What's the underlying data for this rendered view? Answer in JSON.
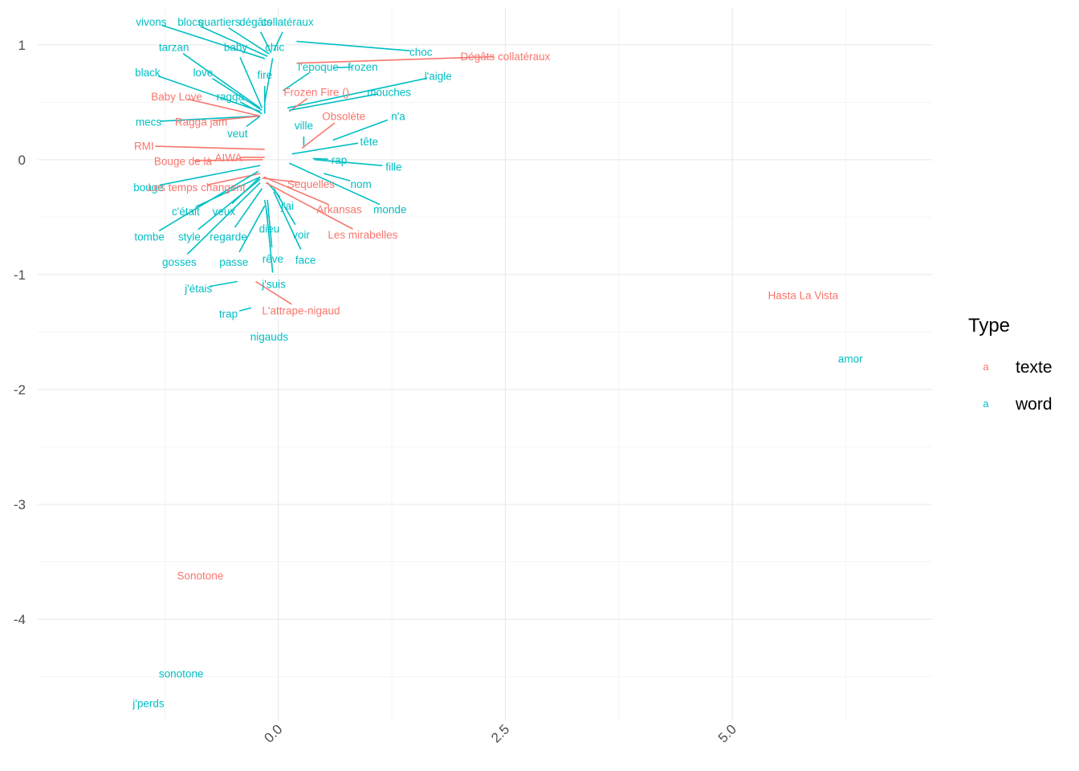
{
  "chart_data": {
    "type": "scatter",
    "title": "",
    "xlabel": "",
    "ylabel": "",
    "xlim": [
      -2.65,
      7.2
    ],
    "ylim": [
      -4.88,
      1.32
    ],
    "x_major_ticks": [
      0,
      2.5,
      5
    ],
    "x_tick_labels": [
      "0.0",
      "2.5",
      "5.0"
    ],
    "x_minor_ticks": [
      -1.25,
      1.25,
      3.75,
      6.25
    ],
    "y_major_ticks": [
      1,
      0,
      -1,
      -2,
      -3,
      -4
    ],
    "y_tick_labels": [
      "1",
      "0",
      "-1",
      "-2",
      "-3",
      "-4"
    ],
    "y_minor_ticks": [
      0.5,
      -0.5,
      -1.5,
      -2.5,
      -3.5,
      -4.5
    ],
    "grid": true,
    "legend": {
      "title": "Type",
      "placement": "right",
      "key_glyph": "a",
      "entries": [
        {
          "name": "texte",
          "color": "#F8766D"
        },
        {
          "name": "word",
          "color": "#00BFC4"
        }
      ]
    },
    "colors": {
      "texte": "#F8766D",
      "word": "#00BFC4"
    },
    "points": [
      {
        "label": "vivons",
        "type": "word",
        "x": -0.15,
        "y": 0.88,
        "lx": -1.4,
        "ly": 1.2
      },
      {
        "label": "blocs",
        "type": "word",
        "x": -0.12,
        "y": 0.9,
        "lx": -0.97,
        "ly": 1.2
      },
      {
        "label": "quartiers",
        "type": "word",
        "x": -0.1,
        "y": 0.92,
        "lx": -0.65,
        "ly": 1.2
      },
      {
        "label": "dégâts",
        "type": "word",
        "x": -0.08,
        "y": 0.93,
        "lx": -0.25,
        "ly": 1.2
      },
      {
        "label": "collatéraux",
        "type": "word",
        "x": -0.05,
        "y": 0.95,
        "lx": 0.1,
        "ly": 1.2
      },
      {
        "label": "choc",
        "type": "word",
        "x": 0.2,
        "y": 1.03,
        "lx": 1.57,
        "ly": 0.94
      },
      {
        "label": "Dégâts collatéraux",
        "type": "texte",
        "x": 0.2,
        "y": 0.84,
        "lx": 2.5,
        "ly": 0.9
      },
      {
        "label": "tarzan",
        "type": "word",
        "x": -0.2,
        "y": 0.45,
        "lx": -1.15,
        "ly": 0.98
      },
      {
        "label": "baby",
        "type": "word",
        "x": -0.18,
        "y": 0.45,
        "lx": -0.47,
        "ly": 0.98
      },
      {
        "label": "chic",
        "type": "word",
        "x": -0.15,
        "y": 0.5,
        "lx": -0.04,
        "ly": 0.98
      },
      {
        "label": "black",
        "type": "word",
        "x": -0.2,
        "y": 0.42,
        "lx": -1.44,
        "ly": 0.76
      },
      {
        "label": "love",
        "type": "word",
        "x": -0.18,
        "y": 0.43,
        "lx": -0.83,
        "ly": 0.76
      },
      {
        "label": "fire",
        "type": "word",
        "x": -0.15,
        "y": 0.4,
        "lx": -0.15,
        "ly": 0.74
      },
      {
        "label": "l'epoque",
        "type": "word",
        "x": 0.05,
        "y": 0.6,
        "lx": 0.44,
        "ly": 0.81
      },
      {
        "label": "frozen",
        "type": "word",
        "x": 0.6,
        "y": 0.8,
        "lx": 0.93,
        "ly": 0.81
      },
      {
        "label": "l'aigle",
        "type": "word",
        "x": 0.1,
        "y": 0.45,
        "lx": 1.76,
        "ly": 0.73
      },
      {
        "label": "Baby Love",
        "type": "texte",
        "x": -0.2,
        "y": 0.38,
        "lx": -1.12,
        "ly": 0.55
      },
      {
        "label": "ragga",
        "type": "word",
        "x": -0.18,
        "y": 0.4,
        "lx": -0.53,
        "ly": 0.55
      },
      {
        "label": "Frozen Fire ()",
        "type": "texte",
        "x": 0.12,
        "y": 0.42,
        "lx": 0.42,
        "ly": 0.59
      },
      {
        "label": "mouches",
        "type": "word",
        "x": 0.12,
        "y": 0.43,
        "lx": 1.22,
        "ly": 0.59
      },
      {
        "label": "mecs",
        "type": "word",
        "x": -0.2,
        "y": 0.38,
        "lx": -1.43,
        "ly": 0.33
      },
      {
        "label": "Ragga jam",
        "type": "texte",
        "x": -0.2,
        "y": 0.38,
        "lx": -0.85,
        "ly": 0.33
      },
      {
        "label": "veut",
        "type": "word",
        "x": -0.2,
        "y": 0.38,
        "lx": -0.45,
        "ly": 0.23
      },
      {
        "label": "ville",
        "type": "word",
        "x": 0.28,
        "y": 0.12,
        "lx": 0.28,
        "ly": 0.3
      },
      {
        "label": "Obsolète",
        "type": "texte",
        "x": 0.26,
        "y": 0.1,
        "lx": 0.72,
        "ly": 0.38
      },
      {
        "label": "n'a",
        "type": "word",
        "x": 0.6,
        "y": 0.17,
        "lx": 1.32,
        "ly": 0.38
      },
      {
        "label": "RMI",
        "type": "texte",
        "x": -0.15,
        "y": 0.09,
        "lx": -1.48,
        "ly": 0.12
      },
      {
        "label": "tête",
        "type": "word",
        "x": 0.15,
        "y": 0.05,
        "lx": 1.0,
        "ly": 0.16
      },
      {
        "label": "AIWA",
        "type": "texte",
        "x": -0.15,
        "y": 0.02,
        "lx": -0.55,
        "ly": 0.02
      },
      {
        "label": "Bouge de là",
        "type": "texte",
        "x": -0.17,
        "y": 0.0,
        "lx": -1.05,
        "ly": -0.01
      },
      {
        "label": "rap",
        "type": "word",
        "x": 0.38,
        "y": 0.01,
        "lx": 0.67,
        "ly": 0.0
      },
      {
        "label": "fille",
        "type": "word",
        "x": 0.4,
        "y": 0.0,
        "lx": 1.27,
        "ly": -0.06
      },
      {
        "label": "nom",
        "type": "word",
        "x": 0.5,
        "y": -0.12,
        "lx": 0.91,
        "ly": -0.21
      },
      {
        "label": "Sequelles",
        "type": "texte",
        "x": -0.18,
        "y": -0.16,
        "lx": 0.36,
        "ly": -0.21
      },
      {
        "label": "bouge",
        "type": "word",
        "x": -0.2,
        "y": -0.05,
        "lx": -1.43,
        "ly": -0.24
      },
      {
        "label": "Les temps changent",
        "type": "texte",
        "x": -0.2,
        "y": -0.12,
        "lx": -0.9,
        "ly": -0.24
      },
      {
        "label": "monde",
        "type": "word",
        "x": 0.12,
        "y": -0.03,
        "lx": 1.23,
        "ly": -0.43
      },
      {
        "label": "Arkansas",
        "type": "texte",
        "x": -0.16,
        "y": -0.15,
        "lx": 0.67,
        "ly": -0.43
      },
      {
        "label": "j'ai",
        "type": "word",
        "x": -0.12,
        "y": -0.2,
        "lx": 0.1,
        "ly": -0.4
      },
      {
        "label": "c'était",
        "type": "word",
        "x": -0.2,
        "y": -0.15,
        "lx": -1.02,
        "ly": -0.45
      },
      {
        "label": "veux",
        "type": "word",
        "x": -0.2,
        "y": -0.15,
        "lx": -0.6,
        "ly": -0.45
      },
      {
        "label": "Les mirabelles",
        "type": "texte",
        "x": -0.14,
        "y": -0.2,
        "lx": 0.93,
        "ly": -0.65
      },
      {
        "label": "dieu",
        "type": "word",
        "x": -0.15,
        "y": -0.35,
        "lx": -0.1,
        "ly": -0.6
      },
      {
        "label": "voir",
        "type": "word",
        "x": -0.05,
        "y": -0.25,
        "lx": 0.25,
        "ly": -0.65
      },
      {
        "label": "tombe",
        "type": "word",
        "x": -0.22,
        "y": -0.1,
        "lx": -1.42,
        "ly": -0.67
      },
      {
        "label": "style",
        "type": "word",
        "x": -0.2,
        "y": -0.17,
        "lx": -0.98,
        "ly": -0.67
      },
      {
        "label": "regarde",
        "type": "word",
        "x": -0.18,
        "y": -0.25,
        "lx": -0.55,
        "ly": -0.67
      },
      {
        "label": "rêve",
        "type": "word",
        "x": -0.12,
        "y": -0.35,
        "lx": -0.06,
        "ly": -0.86
      },
      {
        "label": "face",
        "type": "word",
        "x": -0.05,
        "y": -0.28,
        "lx": 0.3,
        "ly": -0.87
      },
      {
        "label": "gosses",
        "type": "word",
        "x": -0.2,
        "y": -0.2,
        "lx": -1.09,
        "ly": -0.89
      },
      {
        "label": "passe",
        "type": "word",
        "x": -0.15,
        "y": -0.4,
        "lx": -0.49,
        "ly": -0.89
      },
      {
        "label": "j'suis",
        "type": "word",
        "x": -0.13,
        "y": -0.45,
        "lx": -0.05,
        "ly": -1.08
      },
      {
        "label": "j'étais",
        "type": "word",
        "x": -0.45,
        "y": -1.06,
        "lx": -0.88,
        "ly": -1.12
      },
      {
        "label": "L'attrape-nigaud",
        "type": "texte",
        "x": -0.25,
        "y": -1.06,
        "lx": 0.25,
        "ly": -1.31
      },
      {
        "label": "trap",
        "type": "word",
        "x": -0.3,
        "y": -1.29,
        "lx": -0.55,
        "ly": -1.34
      },
      {
        "label": "nigauds",
        "type": "word",
        "x": -0.15,
        "y": -1.46,
        "lx": -0.1,
        "ly": -1.54
      },
      {
        "label": "Hasta La Vista",
        "type": "texte",
        "x": 5.78,
        "y": -1.18,
        "lx": 5.78,
        "ly": -1.18
      },
      {
        "label": "amor",
        "type": "word",
        "x": 6.3,
        "y": -1.73,
        "lx": 6.3,
        "ly": -1.73
      },
      {
        "label": "Sonotone",
        "type": "texte",
        "x": -0.86,
        "y": -3.62,
        "lx": -0.86,
        "ly": -3.62
      },
      {
        "label": "sonotone",
        "type": "word",
        "x": -1.07,
        "y": -4.47,
        "lx": -1.07,
        "ly": -4.47
      },
      {
        "label": "j'perds",
        "type": "word",
        "x": -1.43,
        "y": -4.73,
        "lx": -1.43,
        "ly": -4.73
      }
    ]
  }
}
